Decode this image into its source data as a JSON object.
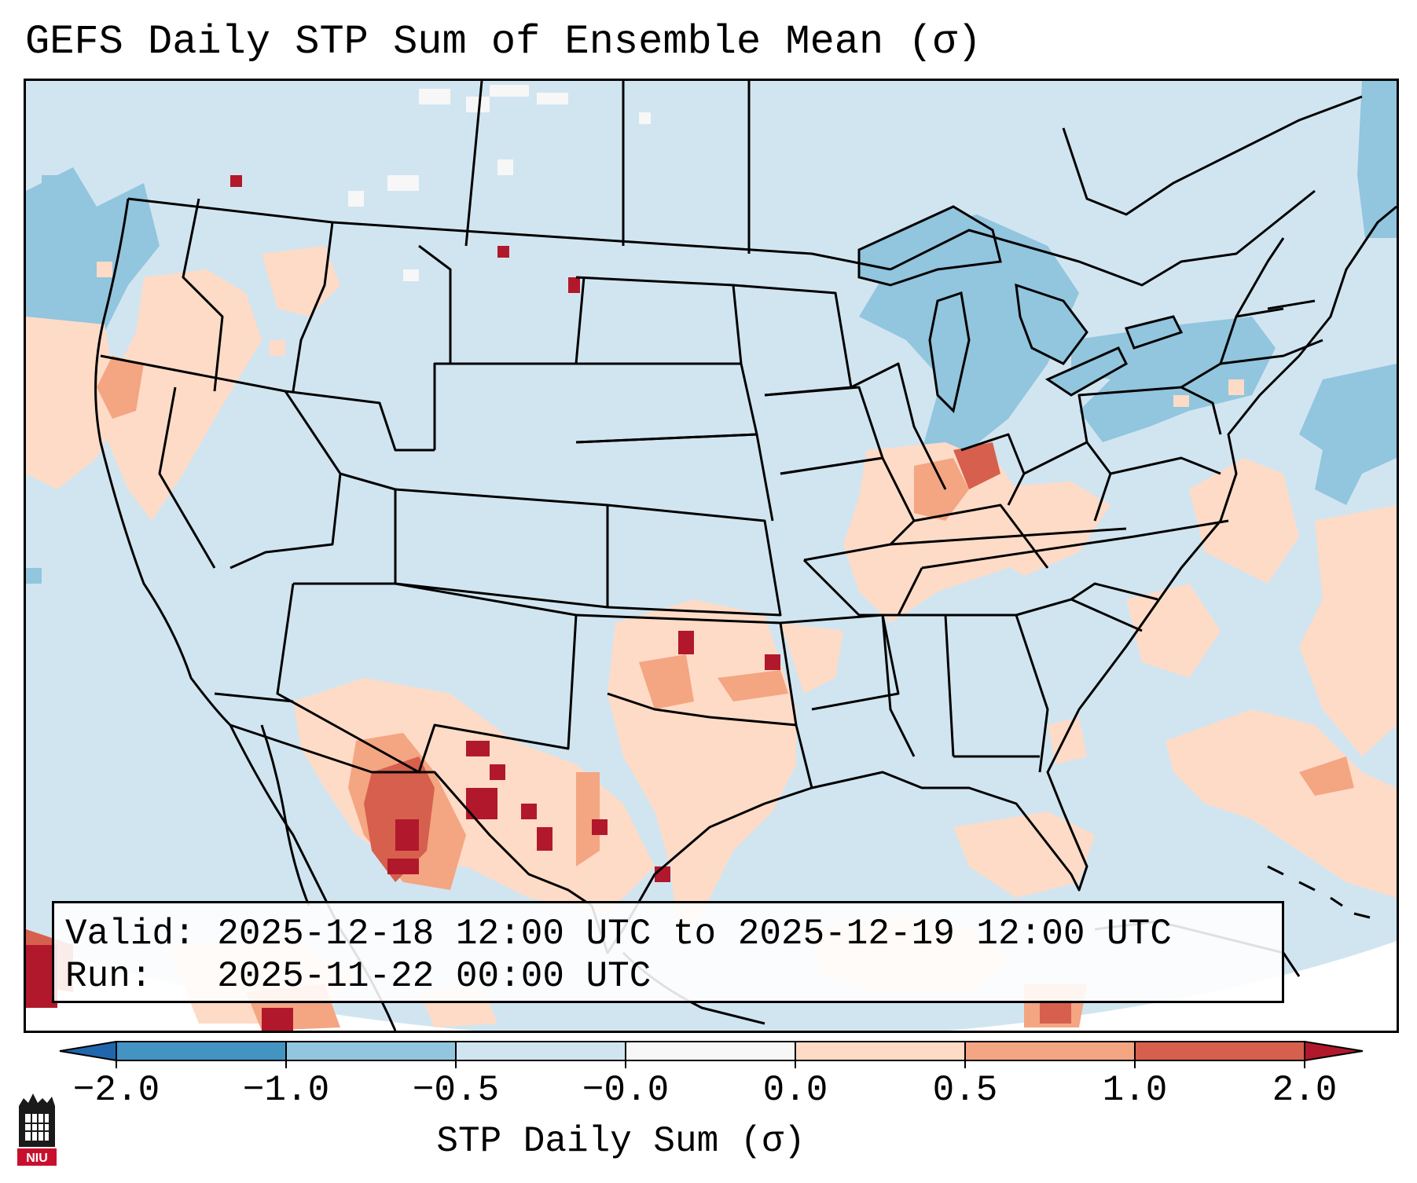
{
  "title": "GEFS Daily STP Sum of Ensemble Mean (σ)",
  "map": {
    "region": "CONUS",
    "ocean_land_color": "#d1e5f0",
    "outside_color": "#ffffff",
    "anomaly_colors": {
      "neg_strong": "#4393c3",
      "neg_moderate": "#92c5de",
      "neg_weak": "#d1e5f0",
      "near_zero_neg": "#f7f7f7",
      "pos_weak": "#fddbc7",
      "pos_moderate": "#f4a582",
      "pos_strong": "#d6604d",
      "pos_extreme": "#b2182b"
    }
  },
  "info": {
    "valid_label": "Valid:",
    "valid_value": "2025-12-18 12:00 UTC to 2025-12-19 12:00 UTC",
    "run_label": "Run:",
    "run_value": "2025-11-22 00:00 UTC"
  },
  "colorbar": {
    "label": "STP Daily Sum (σ)",
    "ticks": [
      "−2.0",
      "−1.0",
      "−0.5",
      "−0.0",
      "0.0",
      "0.5",
      "1.0",
      "2.0"
    ],
    "colors": [
      "#2166ac",
      "#4393c3",
      "#92c5de",
      "#d1e5f0",
      "#f7f7f7",
      "#fddbc7",
      "#f4a582",
      "#d6604d",
      "#b2182b"
    ]
  },
  "logo": {
    "text": "NIU",
    "icon": "niu-logo-icon"
  }
}
